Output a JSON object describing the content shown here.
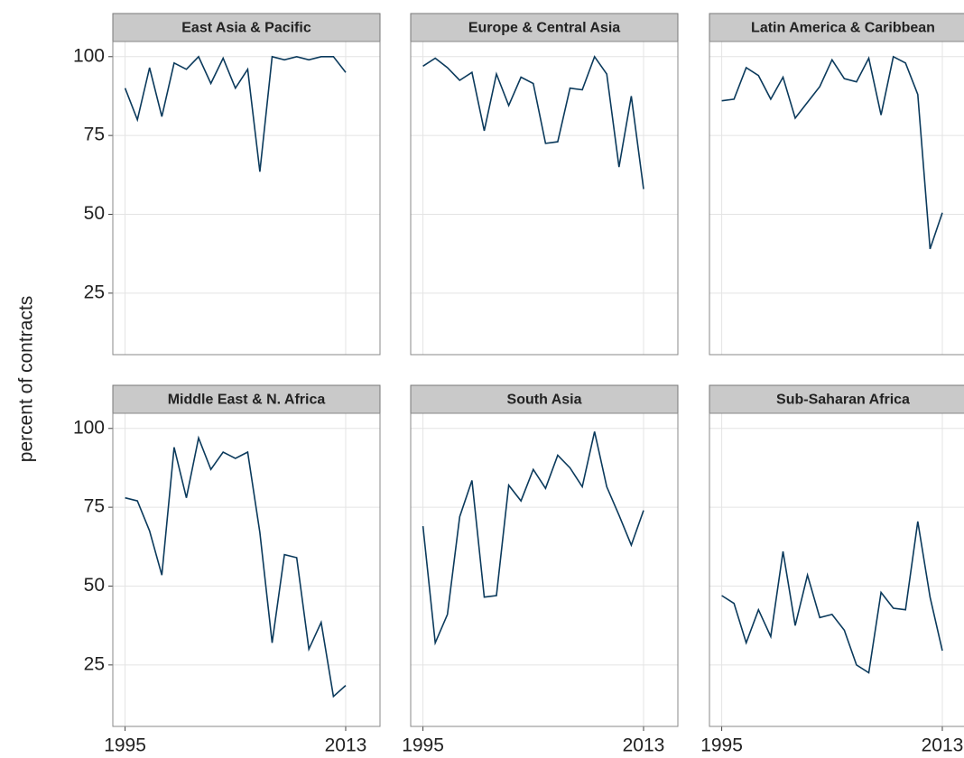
{
  "ylabel": "percent of contracts",
  "chart_data": [
    {
      "type": "line",
      "title": "East Asia & Pacific",
      "color": "#0b3a5c",
      "x": [
        1995,
        1996,
        1997,
        1998,
        1999,
        2000,
        2001,
        2002,
        2003,
        2004,
        2005,
        2006,
        2007,
        2008,
        2009,
        2010,
        2011,
        2012,
        2013
      ],
      "values": [
        90,
        80,
        96.5,
        81,
        98,
        96,
        100,
        91.5,
        99.5,
        90,
        96,
        63.5,
        100,
        99,
        100,
        99,
        100,
        100,
        95
      ],
      "xlim": [
        1994,
        2015.8
      ],
      "xticks": [
        1995,
        2013
      ],
      "ylim": [
        5.5,
        104.8
      ],
      "yticks": [
        25,
        50,
        75,
        100
      ],
      "grid": true
    },
    {
      "type": "line",
      "title": "Europe & Central Asia",
      "color": "#0b3a5c",
      "x": [
        1995,
        1996,
        1997,
        1998,
        1999,
        2000,
        2001,
        2002,
        2003,
        2004,
        2005,
        2006,
        2007,
        2008,
        2009,
        2010,
        2011,
        2012,
        2013
      ],
      "values": [
        97,
        99.5,
        96.5,
        92.5,
        95,
        76.5,
        94.5,
        84.5,
        93.5,
        91.5,
        72.5,
        73,
        90,
        89.5,
        100,
        94.5,
        65,
        87.5,
        58
      ],
      "xlim": [
        1994,
        2015.8
      ],
      "xticks": [
        1995,
        2013
      ],
      "ylim": [
        5.5,
        104.8
      ],
      "yticks": [
        25,
        50,
        75,
        100
      ],
      "grid": true
    },
    {
      "type": "line",
      "title": "Latin America & Caribbean",
      "color": "#0b3a5c",
      "x": [
        1995,
        1996,
        1997,
        1998,
        1999,
        2000,
        2001,
        2002,
        2003,
        2004,
        2005,
        2006,
        2007,
        2008,
        2009,
        2010,
        2011,
        2012,
        2013
      ],
      "values": [
        86,
        86.5,
        96.5,
        94,
        86.5,
        93.5,
        80.5,
        85.5,
        90.5,
        99,
        93,
        92,
        99.5,
        81.5,
        100,
        98,
        88,
        39,
        50.5
      ],
      "xlim": [
        1994,
        2015.8
      ],
      "xticks": [
        1995,
        2013
      ],
      "ylim": [
        5.5,
        104.8
      ],
      "yticks": [
        25,
        50,
        75,
        100
      ],
      "grid": true
    },
    {
      "type": "line",
      "title": "Middle East & N. Africa",
      "color": "#0b3a5c",
      "x": [
        1995,
        1996,
        1997,
        1998,
        1999,
        2000,
        2001,
        2002,
        2003,
        2004,
        2005,
        2006,
        2007,
        2008,
        2009,
        2010,
        2011,
        2012,
        2013
      ],
      "values": [
        78,
        77,
        67.5,
        53.5,
        94,
        78,
        97,
        87,
        92.5,
        90.5,
        92.5,
        67,
        32,
        60,
        59,
        30,
        38.5,
        15,
        18.5
      ],
      "xlim": [
        1994,
        2015.8
      ],
      "xticks": [
        1995,
        2013
      ],
      "ylim": [
        5.5,
        104.8
      ],
      "yticks": [
        25,
        50,
        75,
        100
      ],
      "grid": true
    },
    {
      "type": "line",
      "title": "South Asia",
      "color": "#0b3a5c",
      "x": [
        1995,
        1996,
        1997,
        1998,
        1999,
        2000,
        2001,
        2002,
        2003,
        2004,
        2005,
        2006,
        2007,
        2008,
        2009,
        2010,
        2011,
        2012,
        2013
      ],
      "values": [
        69,
        32,
        41,
        72,
        83.5,
        46.5,
        47,
        82,
        77,
        87,
        81,
        91.5,
        87.5,
        81.5,
        99,
        81.5,
        72.5,
        63,
        74
      ],
      "xlim": [
        1994,
        2015.8
      ],
      "xticks": [
        1995,
        2013
      ],
      "ylim": [
        5.5,
        104.8
      ],
      "yticks": [
        25,
        50,
        75,
        100
      ],
      "grid": true
    },
    {
      "type": "line",
      "title": "Sub-Saharan Africa",
      "color": "#0b3a5c",
      "x": [
        1995,
        1996,
        1997,
        1998,
        1999,
        2000,
        2001,
        2002,
        2003,
        2004,
        2005,
        2006,
        2007,
        2008,
        2009,
        2010,
        2011,
        2012,
        2013
      ],
      "values": [
        47,
        44.5,
        32,
        42.5,
        34,
        61,
        37.5,
        53.5,
        40,
        41,
        36,
        25,
        22.5,
        48,
        43,
        42.5,
        70.5,
        46.5,
        29.5
      ],
      "xlim": [
        1994,
        2015.8
      ],
      "xticks": [
        1995,
        2013
      ],
      "ylim": [
        5.5,
        104.8
      ],
      "yticks": [
        25,
        50,
        75,
        100
      ],
      "grid": true
    }
  ]
}
